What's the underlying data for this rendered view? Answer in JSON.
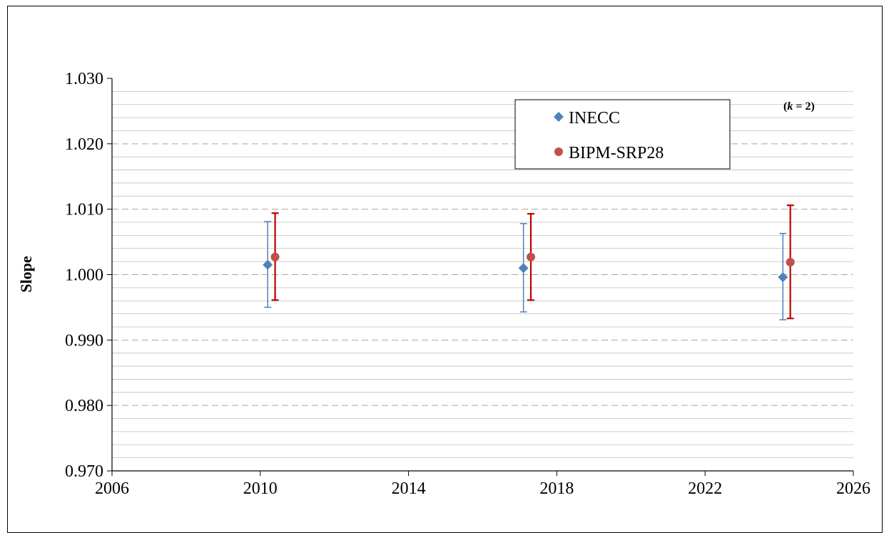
{
  "chart_data": {
    "type": "scatter",
    "title": "",
    "xlabel": "",
    "ylabel": "Slope",
    "xlim": [
      2006,
      2026
    ],
    "ylim": [
      0.97,
      1.03
    ],
    "x_ticks": [
      "2006",
      "2010",
      "2014",
      "2018",
      "2022",
      "2026"
    ],
    "y_ticks": [
      "0.970",
      "0.980",
      "0.990",
      "1.000",
      "1.010",
      "1.020",
      "1.030"
    ],
    "grid": {
      "major": true,
      "minor": true
    },
    "legend": "top-center",
    "annotation": {
      "k": "k",
      "eq": " = 2)",
      "open": "("
    },
    "series": [
      {
        "name": "INECC",
        "marker": "diamond",
        "color": "#4F81BD",
        "error_color": "#4F81BD",
        "points": [
          {
            "x": 2010.2,
            "y": 1.0015,
            "lo": 0.995,
            "hi": 1.0081
          },
          {
            "x": 2017.1,
            "y": 1.001,
            "lo": 0.9943,
            "hi": 1.0078
          },
          {
            "x": 2024.1,
            "y": 0.9996,
            "lo": 0.9931,
            "hi": 1.0063
          }
        ]
      },
      {
        "name": "BIPM-SRP28",
        "marker": "circle",
        "color": "#C0504D",
        "error_color": "#C00000",
        "points": [
          {
            "x": 2010.4,
            "y": 1.0027,
            "lo": 0.9961,
            "hi": 1.0094
          },
          {
            "x": 2017.3,
            "y": 1.0027,
            "lo": 0.9961,
            "hi": 1.0093
          },
          {
            "x": 2024.3,
            "y": 1.0019,
            "lo": 0.9933,
            "hi": 1.0106
          }
        ]
      }
    ]
  }
}
